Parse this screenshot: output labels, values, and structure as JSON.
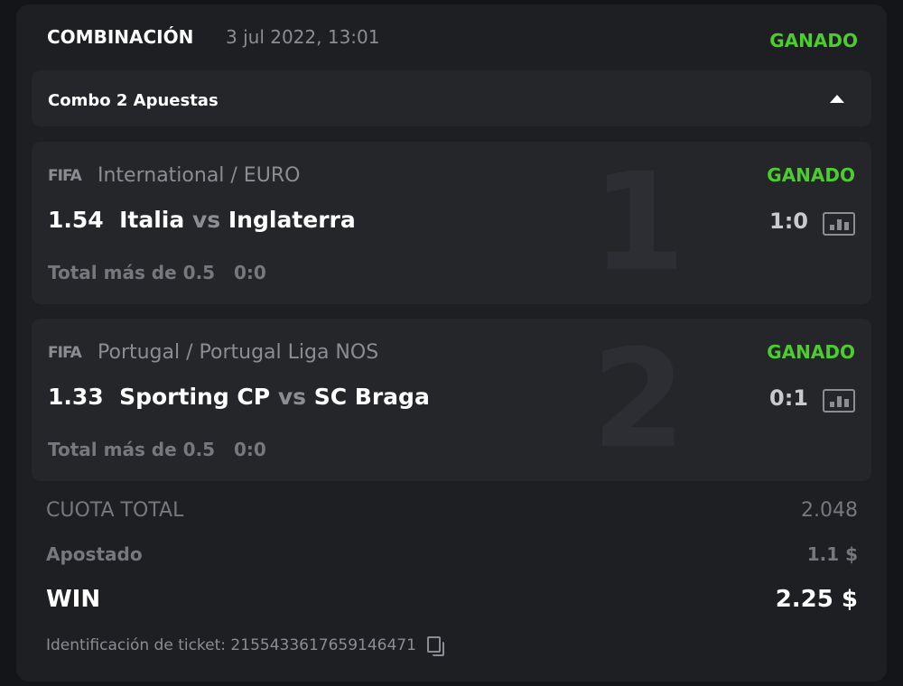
{
  "header": {
    "title": "COMBINACIÓN",
    "date": "3 jul 2022, 13:01",
    "status": "GANADO"
  },
  "combo": {
    "label": "Combo 2 Apuestas"
  },
  "bets": [
    {
      "index": "1",
      "sport": "FIFA",
      "league": "International / EURO",
      "status": "GANADO",
      "odds": "1.54",
      "home": "Italia",
      "vs": "vs",
      "away": "Inglaterra",
      "score": "1:0",
      "market": "Total más de 0.5   0:0"
    },
    {
      "index": "2",
      "sport": "FIFA",
      "league": "Portugal / Portugal Liga NOS",
      "status": "GANADO",
      "odds": "1.33",
      "home": "Sporting CP",
      "vs": "vs",
      "away": "SC Braga",
      "score": "0:1",
      "market": "Total más de 0.5   0:0"
    }
  ],
  "summary": {
    "total_odds_label": "CUOTA TOTAL",
    "total_odds": "2.048",
    "stake_label": "Apostado",
    "stake": "1.1 $",
    "win_label": "WIN",
    "win": "2.25 $",
    "ticket_label": "Identificación de ticket: 2155433617659146471"
  },
  "colors": {
    "win": "#4ccc2e",
    "background": "#1e1f23"
  }
}
